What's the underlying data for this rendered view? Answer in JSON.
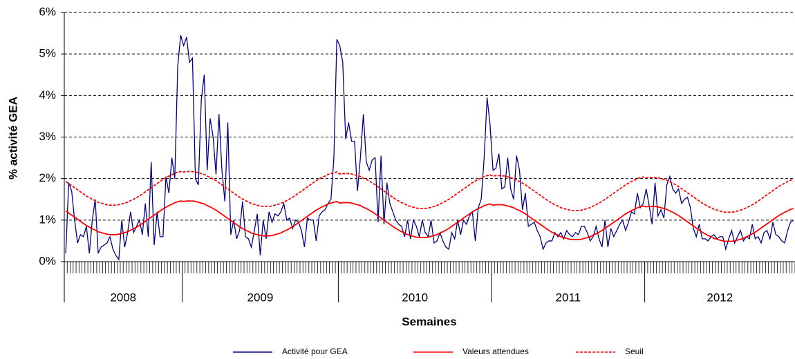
{
  "chart_data": {
    "type": "line",
    "xlabel": "Semaines",
    "ylabel": "% activité GEA",
    "categories": [
      "2008",
      "2009",
      "2010",
      "2011",
      "2012"
    ],
    "ylim": [
      0,
      6
    ],
    "yticks": [
      {
        "value": 0,
        "label": "0%"
      },
      {
        "value": 1,
        "label": "1%"
      },
      {
        "value": 2,
        "label": "2%"
      },
      {
        "value": 3,
        "label": "3%"
      },
      {
        "value": 4,
        "label": "4%"
      },
      {
        "value": 5,
        "label": "5%"
      },
      {
        "value": 6,
        "label": "6%"
      }
    ],
    "grid": true,
    "legend": "bottom",
    "series": [
      {
        "name": "Activité pour  GEA",
        "color": "#000080",
        "line_style": "solid",
        "values": [
          [
            0.2,
            1.9,
            1.7,
            1.0,
            0.45,
            0.65,
            0.6,
            0.85,
            0.2,
            1.0,
            1.5,
            0.2,
            0.35,
            0.4,
            0.45,
            0.6,
            0.3,
            0.15,
            0.05,
            1.0,
            0.35,
            0.7,
            1.2,
            0.7,
            0.85,
            1.0,
            0.65,
            1.4,
            0.6,
            2.4,
            0.4,
            1.2,
            0.6,
            0.6,
            2.05,
            1.65,
            2.5,
            2.0,
            4.7,
            5.45
          ],
          [
            5.2,
            5.4,
            4.8,
            4.9,
            2.0,
            1.85,
            3.9,
            4.5,
            2.2,
            3.45,
            3.0,
            2.1,
            3.55,
            2.2,
            1.45,
            3.35,
            0.65,
            1.0,
            0.55,
            0.75,
            1.45,
            0.6,
            0.55,
            0.35,
            0.75,
            1.15,
            0.15,
            1.0,
            0.55,
            1.2,
            0.95,
            1.15,
            1.1,
            1.2,
            1.4,
            1.0,
            1.05,
            0.8,
            1.0,
            0.95,
            0.75,
            0.35,
            1.05,
            1.0,
            1.0,
            0.5,
            1.1,
            1.2,
            1.25,
            1.4,
            1.5,
            2.5,
            5.35
          ],
          [
            5.2,
            4.8,
            2.95,
            3.35,
            2.9,
            2.9,
            1.7,
            2.5,
            3.55,
            2.4,
            2.2,
            2.45,
            2.5,
            0.95,
            2.55,
            0.9,
            1.9,
            1.4,
            1.2,
            1.0,
            0.9,
            0.85,
            0.6,
            1.0,
            0.55,
            1.0,
            0.85,
            0.6,
            1.0,
            0.7,
            0.6,
            1.0,
            0.45,
            0.5,
            0.7,
            0.5,
            0.35,
            0.3,
            0.7,
            0.55,
            1.0,
            0.65,
            1.0,
            0.9,
            1.1,
            1.2,
            0.5,
            1.3,
            1.5,
            2.5,
            3.95,
            3.3
          ],
          [
            2.2,
            2.25,
            2.6,
            1.75,
            1.8,
            2.5,
            1.75,
            1.5,
            2.55,
            2.2,
            1.25,
            1.65,
            0.85,
            0.9,
            0.95,
            0.75,
            0.6,
            0.3,
            0.45,
            0.5,
            0.5,
            0.7,
            0.6,
            0.7,
            0.55,
            0.75,
            0.65,
            0.6,
            0.7,
            0.65,
            0.85,
            0.85,
            0.7,
            0.5,
            0.6,
            0.85,
            0.55,
            0.35,
            1.0,
            0.35,
            0.8,
            0.6,
            0.75,
            0.9,
            1.0,
            0.75,
            0.95,
            1.2,
            1.15,
            1.65,
            1.3,
            1.4
          ],
          [
            1.75,
            1.35,
            0.9,
            1.9,
            1.1,
            1.25,
            1.05,
            1.85,
            2.05,
            1.75,
            1.65,
            1.75,
            1.4,
            1.5,
            1.55,
            1.3,
            0.8,
            0.6,
            0.9,
            0.55,
            0.55,
            0.5,
            0.6,
            0.65,
            0.55,
            0.6,
            0.6,
            0.3,
            0.55,
            0.75,
            0.45,
            0.6,
            0.75,
            0.5,
            0.6,
            0.55,
            0.9,
            0.55,
            0.6,
            0.45,
            0.7,
            0.75,
            0.55,
            0.95,
            0.65,
            0.6,
            0.5,
            0.45,
            0.75,
            0.95,
            1.0
          ]
        ]
      },
      {
        "name": "Valeurs attendues",
        "color": "#ff0000",
        "line_style": "solid",
        "values": [
          [
            1.22,
            1.17,
            1.12,
            1.07,
            1.02,
            0.97,
            0.92,
            0.87,
            0.83,
            0.79,
            0.76,
            0.72,
            0.7,
            0.68,
            0.66,
            0.65,
            0.65,
            0.65,
            0.66,
            0.68,
            0.7,
            0.72,
            0.76,
            0.79,
            0.83,
            0.87,
            0.92,
            0.97,
            1.02,
            1.07,
            1.12,
            1.17,
            1.22,
            1.27,
            1.31,
            1.35,
            1.38,
            1.42,
            1.44,
            1.46
          ],
          [
            1.45,
            1.46,
            1.46,
            1.46,
            1.45,
            1.43,
            1.41,
            1.39,
            1.35,
            1.32,
            1.28,
            1.24,
            1.19,
            1.14,
            1.09,
            1.04,
            0.99,
            0.94,
            0.89,
            0.84,
            0.8,
            0.76,
            0.73,
            0.69,
            0.67,
            0.65,
            0.63,
            0.62,
            0.62,
            0.62,
            0.63,
            0.65,
            0.67,
            0.69,
            0.73,
            0.76,
            0.8,
            0.84,
            0.89,
            0.94,
            0.99,
            1.04,
            1.09,
            1.14,
            1.19,
            1.24,
            1.28,
            1.32,
            1.35,
            1.39,
            1.41,
            1.43,
            1.45
          ],
          [
            1.41,
            1.42,
            1.42,
            1.42,
            1.41,
            1.39,
            1.37,
            1.35,
            1.31,
            1.28,
            1.24,
            1.2,
            1.15,
            1.1,
            1.05,
            1.0,
            0.95,
            0.9,
            0.85,
            0.8,
            0.76,
            0.72,
            0.69,
            0.65,
            0.63,
            0.61,
            0.59,
            0.58,
            0.58,
            0.58,
            0.59,
            0.61,
            0.63,
            0.65,
            0.69,
            0.72,
            0.76,
            0.8,
            0.85,
            0.9,
            0.95,
            1.0,
            1.05,
            1.1,
            1.15,
            1.2,
            1.24,
            1.28,
            1.31,
            1.35,
            1.37,
            1.39
          ],
          [
            1.36,
            1.37,
            1.37,
            1.37,
            1.36,
            1.34,
            1.32,
            1.3,
            1.26,
            1.23,
            1.19,
            1.15,
            1.1,
            1.05,
            1.0,
            0.95,
            0.9,
            0.85,
            0.8,
            0.75,
            0.71,
            0.67,
            0.64,
            0.6,
            0.58,
            0.56,
            0.54,
            0.53,
            0.53,
            0.53,
            0.54,
            0.56,
            0.58,
            0.6,
            0.64,
            0.67,
            0.71,
            0.75,
            0.8,
            0.85,
            0.9,
            0.95,
            1.0,
            1.05,
            1.1,
            1.15,
            1.19,
            1.23,
            1.26,
            1.3,
            1.32,
            1.34
          ],
          [
            1.32,
            1.33,
            1.33,
            1.33,
            1.32,
            1.3,
            1.28,
            1.26,
            1.22,
            1.19,
            1.15,
            1.11,
            1.06,
            1.01,
            0.96,
            0.91,
            0.86,
            0.81,
            0.76,
            0.71,
            0.67,
            0.63,
            0.6,
            0.56,
            0.54,
            0.52,
            0.5,
            0.49,
            0.49,
            0.49,
            0.5,
            0.52,
            0.54,
            0.56,
            0.6,
            0.63,
            0.67,
            0.71,
            0.76,
            0.81,
            0.86,
            0.91,
            0.96,
            1.01,
            1.06,
            1.11,
            1.15,
            1.19,
            1.22,
            1.26,
            1.28
          ]
        ]
      },
      {
        "name": "Seuil",
        "color": "#ff0000",
        "line_style": "dashed",
        "values": [
          [
            1.93,
            1.88,
            1.83,
            1.78,
            1.73,
            1.68,
            1.63,
            1.58,
            1.54,
            1.5,
            1.47,
            1.43,
            1.41,
            1.39,
            1.37,
            1.36,
            1.36,
            1.36,
            1.37,
            1.39,
            1.41,
            1.43,
            1.47,
            1.5,
            1.54,
            1.58,
            1.63,
            1.68,
            1.73,
            1.78,
            1.83,
            1.88,
            1.93,
            1.98,
            2.02,
            2.06,
            2.09,
            2.13,
            2.15,
            2.17
          ],
          [
            2.16,
            2.17,
            2.17,
            2.17,
            2.16,
            2.14,
            2.12,
            2.1,
            2.06,
            2.03,
            1.99,
            1.95,
            1.9,
            1.85,
            1.8,
            1.75,
            1.7,
            1.65,
            1.6,
            1.55,
            1.51,
            1.47,
            1.44,
            1.4,
            1.38,
            1.36,
            1.34,
            1.33,
            1.33,
            1.33,
            1.34,
            1.36,
            1.38,
            1.4,
            1.44,
            1.47,
            1.51,
            1.55,
            1.6,
            1.65,
            1.7,
            1.75,
            1.8,
            1.85,
            1.9,
            1.95,
            1.99,
            2.03,
            2.06,
            2.1,
            2.12,
            2.14,
            2.16
          ],
          [
            2.11,
            2.12,
            2.12,
            2.12,
            2.11,
            2.09,
            2.07,
            2.05,
            2.01,
            1.98,
            1.94,
            1.9,
            1.85,
            1.8,
            1.75,
            1.7,
            1.65,
            1.6,
            1.55,
            1.5,
            1.46,
            1.42,
            1.39,
            1.35,
            1.33,
            1.31,
            1.29,
            1.28,
            1.28,
            1.28,
            1.29,
            1.31,
            1.33,
            1.35,
            1.39,
            1.42,
            1.46,
            1.5,
            1.55,
            1.6,
            1.65,
            1.7,
            1.75,
            1.8,
            1.85,
            1.9,
            1.94,
            1.98,
            2.01,
            2.05,
            2.07,
            2.09
          ],
          [
            2.06,
            2.07,
            2.07,
            2.07,
            2.06,
            2.04,
            2.02,
            2.0,
            1.96,
            1.93,
            1.89,
            1.85,
            1.8,
            1.75,
            1.7,
            1.65,
            1.6,
            1.55,
            1.5,
            1.45,
            1.41,
            1.37,
            1.34,
            1.3,
            1.28,
            1.26,
            1.24,
            1.23,
            1.23,
            1.23,
            1.24,
            1.26,
            1.28,
            1.3,
            1.34,
            1.37,
            1.41,
            1.45,
            1.5,
            1.55,
            1.6,
            1.65,
            1.7,
            1.75,
            1.8,
            1.85,
            1.89,
            1.93,
            1.96,
            2.0,
            2.02,
            2.04
          ],
          [
            2.02,
            2.03,
            2.03,
            2.03,
            2.02,
            2.0,
            1.98,
            1.96,
            1.92,
            1.89,
            1.85,
            1.81,
            1.76,
            1.71,
            1.66,
            1.61,
            1.56,
            1.51,
            1.46,
            1.41,
            1.37,
            1.33,
            1.3,
            1.26,
            1.24,
            1.22,
            1.2,
            1.19,
            1.19,
            1.19,
            1.2,
            1.22,
            1.24,
            1.26,
            1.3,
            1.33,
            1.37,
            1.41,
            1.46,
            1.51,
            1.56,
            1.61,
            1.66,
            1.71,
            1.76,
            1.81,
            1.85,
            1.89,
            1.93,
            1.96,
            1.98
          ]
        ]
      }
    ]
  }
}
